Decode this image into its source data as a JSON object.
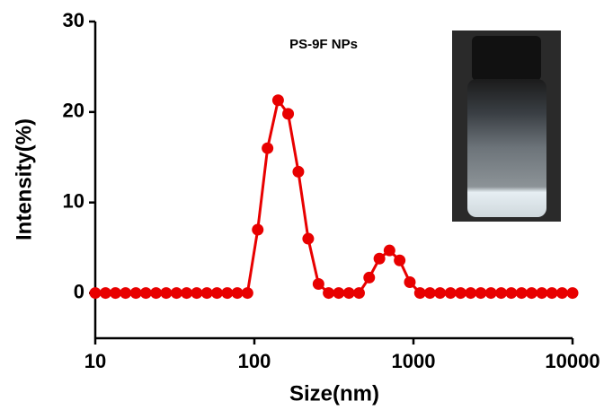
{
  "chart_data": {
    "type": "line",
    "annotation": "PS-9F NPs",
    "xlabel": "Size(nm)",
    "ylabel": "Intensity(%)",
    "xscale": "log",
    "xlim": [
      10,
      10000
    ],
    "xticks": [
      10,
      100,
      1000,
      10000
    ],
    "ylim": [
      -5,
      30
    ],
    "yticks": [
      0,
      10,
      20,
      30
    ],
    "grid": false,
    "series": [
      {
        "color": "#e80000",
        "x": [
          10,
          11.6,
          13.4,
          15.5,
          18.0,
          20.8,
          24.1,
          27.9,
          32.4,
          37.5,
          43.4,
          50.3,
          58.2,
          67.5,
          78.1,
          90.5,
          105,
          121,
          141,
          163,
          189,
          218,
          253,
          293,
          339,
          393,
          455,
          527,
          611,
          707,
          819,
          949,
          1100,
          1270,
          1470,
          1710,
          1980,
          2290,
          2650,
          3070,
          3560,
          4120,
          4780,
          5530,
          6410,
          7420,
          8600,
          10000
        ],
        "values": [
          0,
          0,
          0,
          0,
          0,
          0,
          0,
          0,
          0,
          0,
          0,
          0,
          0,
          0,
          0,
          0,
          7,
          16,
          21.3,
          19.8,
          13.4,
          6,
          1,
          0,
          0,
          0,
          0,
          1.7,
          3.8,
          4.7,
          3.6,
          1.2,
          0,
          0,
          0,
          0,
          0,
          0,
          0,
          0,
          0,
          0,
          0,
          0,
          0,
          0,
          0,
          0
        ]
      }
    ]
  }
}
